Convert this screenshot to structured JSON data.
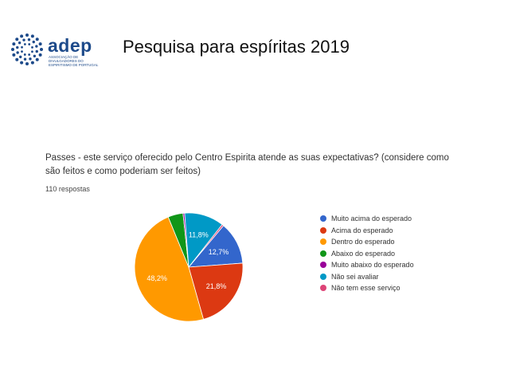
{
  "header": {
    "logo_text": "adep",
    "logo_subtext": "ASSOCIAÇÃO DE DIVULGADORES DO ESPIRITISMO DE PORTUGAL",
    "logo_color": "#1d4a8a",
    "page_title": "Pesquisa para espíritas  2019"
  },
  "question": {
    "title": "Passes - este serviço oferecido pelo Centro Espirita atende as suas expectativas? (considere como são feitos e como poderiam ser feitos)",
    "responses": "110 respostas"
  },
  "chart_data": {
    "type": "pie",
    "title": "Passes - este serviço oferecido pelo Centro Espirita atende as suas expectativas? (considere como são feitos e como poderiam ser feitos)",
    "legend_position": "right",
    "slices": [
      {
        "label": "Muito acima do esperado",
        "value": 12.7,
        "display": "12,7%",
        "color": "#3366cc"
      },
      {
        "label": "Acima do esperado",
        "value": 21.8,
        "display": "21,8%",
        "color": "#dc3912"
      },
      {
        "label": "Dentro do esperado",
        "value": 48.2,
        "display": "48,2%",
        "color": "#ff9900"
      },
      {
        "label": "Abaixo do esperado",
        "value": 4.5,
        "display": "",
        "color": "#109618"
      },
      {
        "label": "Muito abaixo do esperado",
        "value": 0.5,
        "display": "",
        "color": "#990099"
      },
      {
        "label": "Não sei avaliar",
        "value": 11.8,
        "display": "11,8%",
        "color": "#0099c6"
      },
      {
        "label": "Não tem esse serviço",
        "value": 0.5,
        "display": "",
        "color": "#dd4477"
      }
    ]
  }
}
